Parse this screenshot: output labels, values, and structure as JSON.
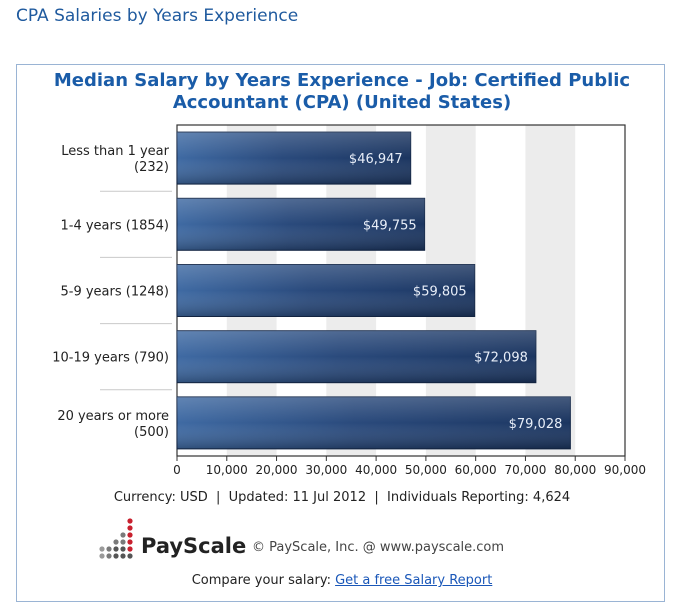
{
  "page": {
    "heading": "CPA Salaries by Years Experience"
  },
  "chart_data": {
    "type": "bar",
    "orientation": "horizontal",
    "title": "Median Salary by Years Experience - Job: Certified Public Accountant (CPA) (United States)",
    "title_lines": [
      "Median Salary by Years Experience - Job: Certified Public",
      "Accountant (CPA) (United States)"
    ],
    "categories": [
      [
        "Less than 1 year",
        "(232)"
      ],
      [
        "1-4 years (1854)"
      ],
      [
        "5-9 years (1248)"
      ],
      [
        "10-19 years (790)"
      ],
      [
        "20 years or more",
        "(500)"
      ]
    ],
    "values": [
      46947,
      49755,
      59805,
      72098,
      79028
    ],
    "value_labels": [
      "$46,947",
      "$49,755",
      "$59,805",
      "$72,098",
      "$79,028"
    ],
    "xlim": [
      0,
      90000
    ],
    "xticks": [
      0,
      10000,
      20000,
      30000,
      40000,
      50000,
      60000,
      70000,
      80000,
      90000
    ],
    "xtick_labels": [
      "0",
      "10,000",
      "20,000",
      "30,000",
      "40,000",
      "50,000",
      "60,000",
      "70,000",
      "80,000",
      "90,000"
    ],
    "xlabel": "",
    "ylabel": "",
    "grid": "vertical alternating bands",
    "colors": {
      "bar_dark": "#1b3560",
      "bar_light": "#3f6aa3",
      "band": "#ececec",
      "value_text": "#e8eef8"
    }
  },
  "footer": {
    "status": "Currency: USD  |  Updated: 11 Jul 2012  |  Individuals Reporting: 4,624",
    "logo": "PayScale",
    "copyright": "© PayScale, Inc. @ www.payscale.com",
    "compare_prefix": "Compare your salary: ",
    "compare_link": "Get a free Salary Report"
  },
  "icons": {
    "logo": "payscale-dots-icon"
  }
}
